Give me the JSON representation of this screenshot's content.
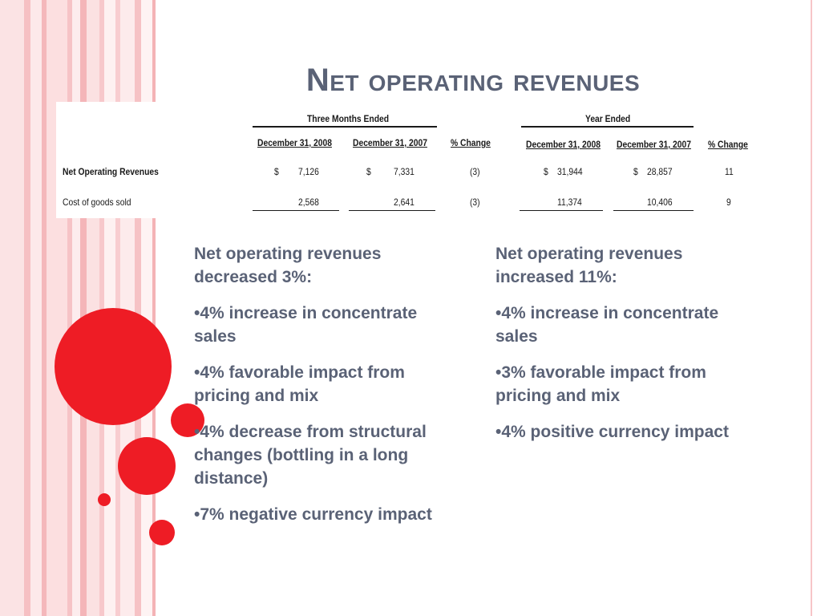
{
  "title": "Net operating revenues",
  "table": {
    "group_three_months": "Three Months Ended",
    "group_year": "Year Ended",
    "col_dec_2008": "December 31, 2008",
    "col_dec_2007": "December 31, 2007",
    "col_change": "% Change",
    "rows": [
      {
        "label": "Net Operating Revenues",
        "q2008": "7,126",
        "q2007": "7,331",
        "qchange": "(3)",
        "y2008": "31,944",
        "y2007": "28,857",
        "ychange": "11",
        "currency": "$"
      },
      {
        "label": "Cost of goods sold",
        "q2008": "2,568",
        "q2007": "2,641",
        "qchange": "(3)",
        "y2008": "11,374",
        "y2007": "10,406",
        "ychange": "9"
      }
    ]
  },
  "left": {
    "heading": "Net operating revenues decreased 3%:",
    "bullets": [
      "•4% increase in concentrate sales",
      "•4% favorable impact from pricing and mix",
      "•4% decrease from structural changes (bottling in a long distance)",
      "•7% negative currency impact"
    ]
  },
  "right": {
    "heading": "Net operating revenues increased 11%:",
    "bullets": [
      "•4% increase in concentrate sales",
      "•3% favorable impact from pricing and mix",
      "•4% positive currency impact"
    ]
  },
  "colors": {
    "accent": "#ee1c25",
    "text": "#5a6276",
    "stripe": "#f7c5c8"
  }
}
